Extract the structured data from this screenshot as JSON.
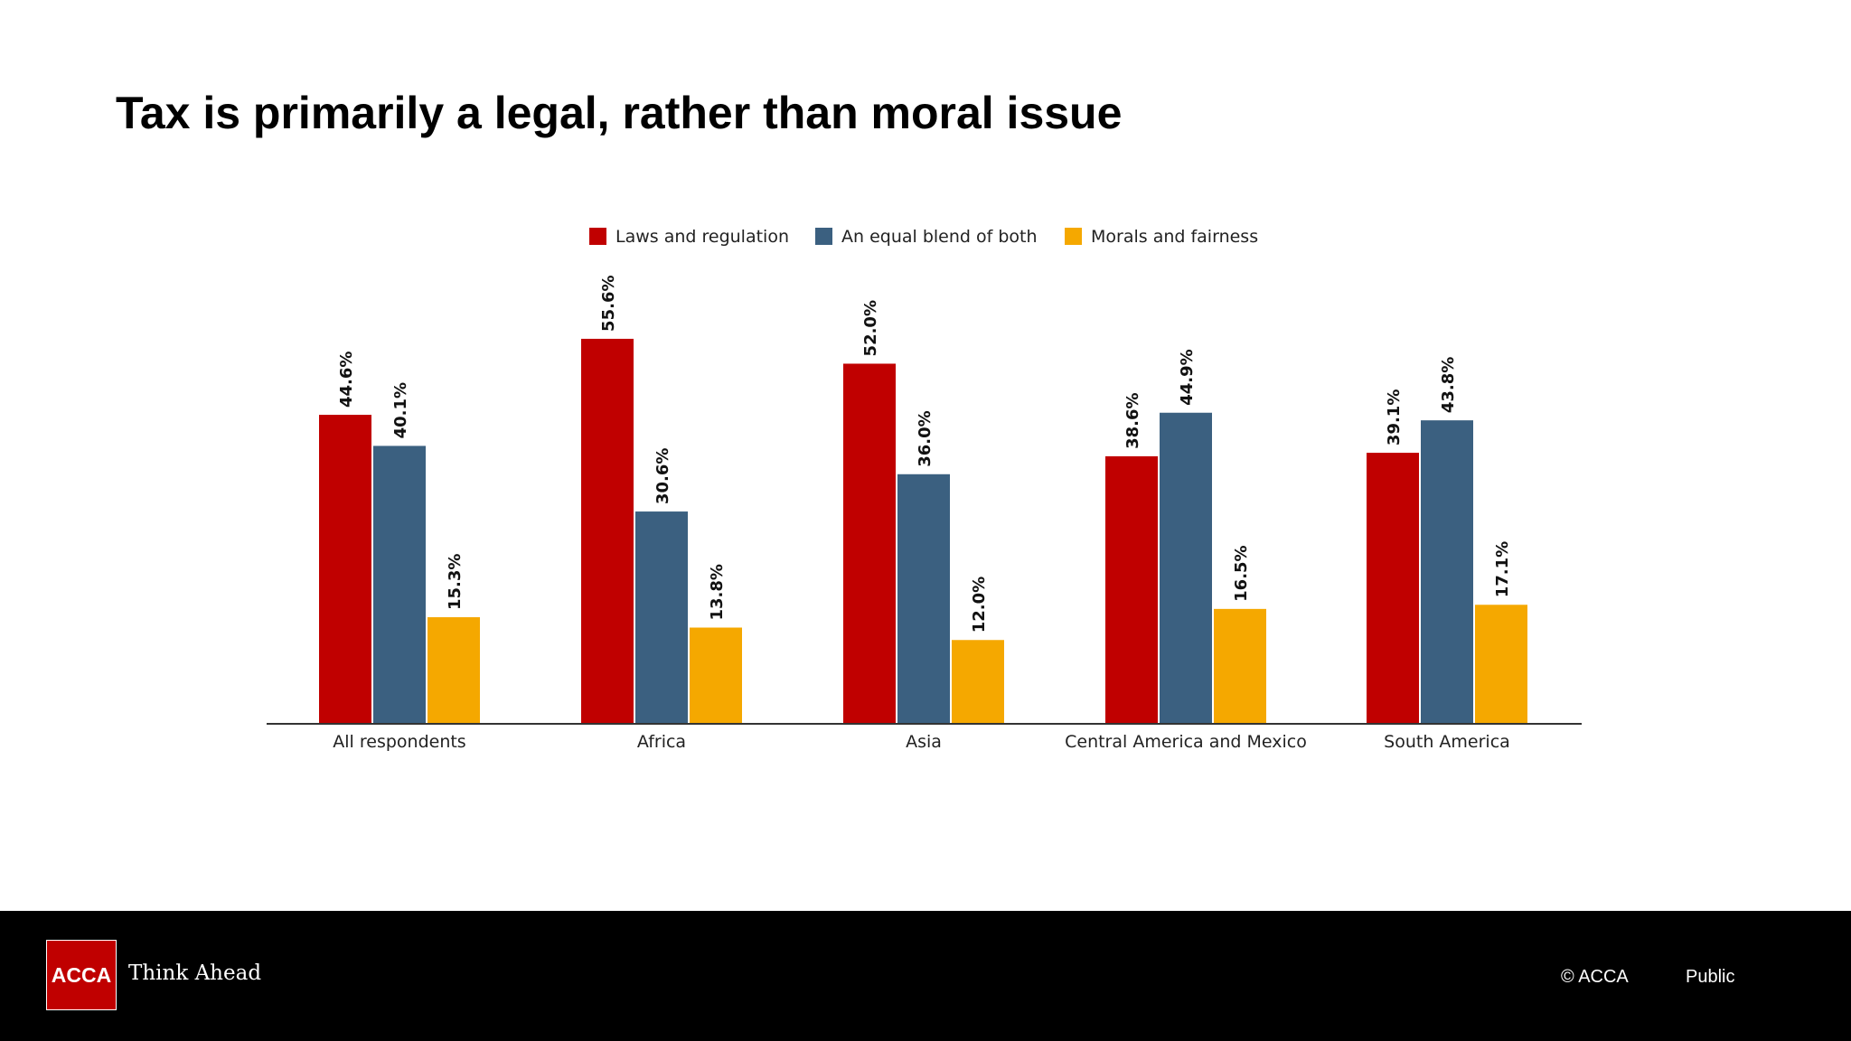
{
  "slide": {
    "title": "Tax is primarily a legal, rather than moral issue"
  },
  "chart_data": {
    "type": "bar",
    "categories": [
      "All respondents",
      "Africa",
      "Asia",
      "Central America and Mexico",
      "South America"
    ],
    "series": [
      {
        "name": "Laws and regulation",
        "color": "#c00000",
        "values": [
          44.6,
          55.6,
          52.0,
          38.6,
          39.1
        ],
        "labels": [
          "44.6%",
          "55.6%",
          "52.0%",
          "38.6%",
          "39.1%"
        ]
      },
      {
        "name": "An equal blend of both",
        "color": "#3b6080",
        "values": [
          40.1,
          30.6,
          36.0,
          44.9,
          43.8
        ],
        "labels": [
          "40.1%",
          "30.6%",
          "36.0%",
          "44.9%",
          "43.8%"
        ]
      },
      {
        "name": "Morals and fairness",
        "color": "#f5a800",
        "values": [
          15.3,
          13.8,
          12.0,
          16.5,
          17.1
        ],
        "labels": [
          "15.3%",
          "13.8%",
          "12.0%",
          "16.5%",
          "17.1%"
        ]
      }
    ],
    "ylim": [
      0,
      60
    ],
    "legend_position": "top-center",
    "grid": false
  },
  "footer": {
    "logo_text": "ACCA",
    "tagline": "Think Ahead",
    "copyright": "© ACCA",
    "classification": "Public"
  }
}
